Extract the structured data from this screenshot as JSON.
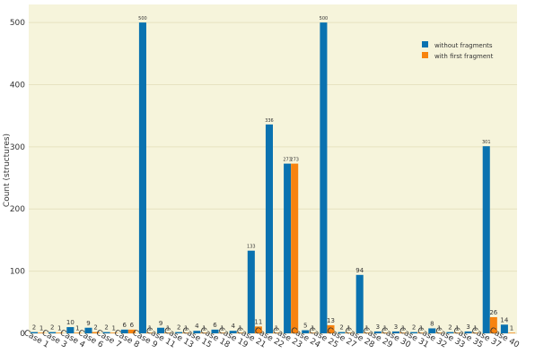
{
  "chart_data": {
    "type": "bar",
    "y_label": "Count (structures)",
    "categories": [
      "Case 1",
      "Case 3",
      "Case 4",
      "Case 6",
      "Case 7",
      "Case 8",
      "Case 9",
      "Case 11",
      "Case 13",
      "Case 15",
      "Case 18",
      "Case 19",
      "Case 21",
      "Case 22",
      "Case 23",
      "Case 24",
      "Case 25",
      "Case 27",
      "Case 28",
      "Case 29",
      "Case 30",
      "Case 31",
      "Case 32",
      "Case 33",
      "Case 35",
      "Case 37",
      "Case 40"
    ],
    "series": [
      {
        "name": "without fragments",
        "color": "#0a72b0",
        "values": [
          2,
          2,
          10,
          9,
          2,
          6,
          500,
          9,
          2,
          4,
          6,
          4,
          133,
          336,
          273,
          5,
          500,
          2,
          94,
          3,
          3,
          2,
          8,
          2,
          3,
          301,
          14
        ]
      },
      {
        "name": "with first fragment",
        "color": "#f7830f",
        "values": [
          1,
          1,
          1,
          2,
          1,
          6,
          1,
          1,
          1,
          1,
          1,
          1,
          11,
          1,
          273,
          1,
          13,
          1,
          1,
          1,
          1,
          1,
          1,
          1,
          1,
          26,
          1
        ]
      }
    ],
    "ylim": [
      0,
      529
    ],
    "yticks": [
      0,
      100,
      200,
      300,
      400,
      500
    ],
    "grid": true,
    "legend": "top-right",
    "background": "#f6f4db"
  }
}
